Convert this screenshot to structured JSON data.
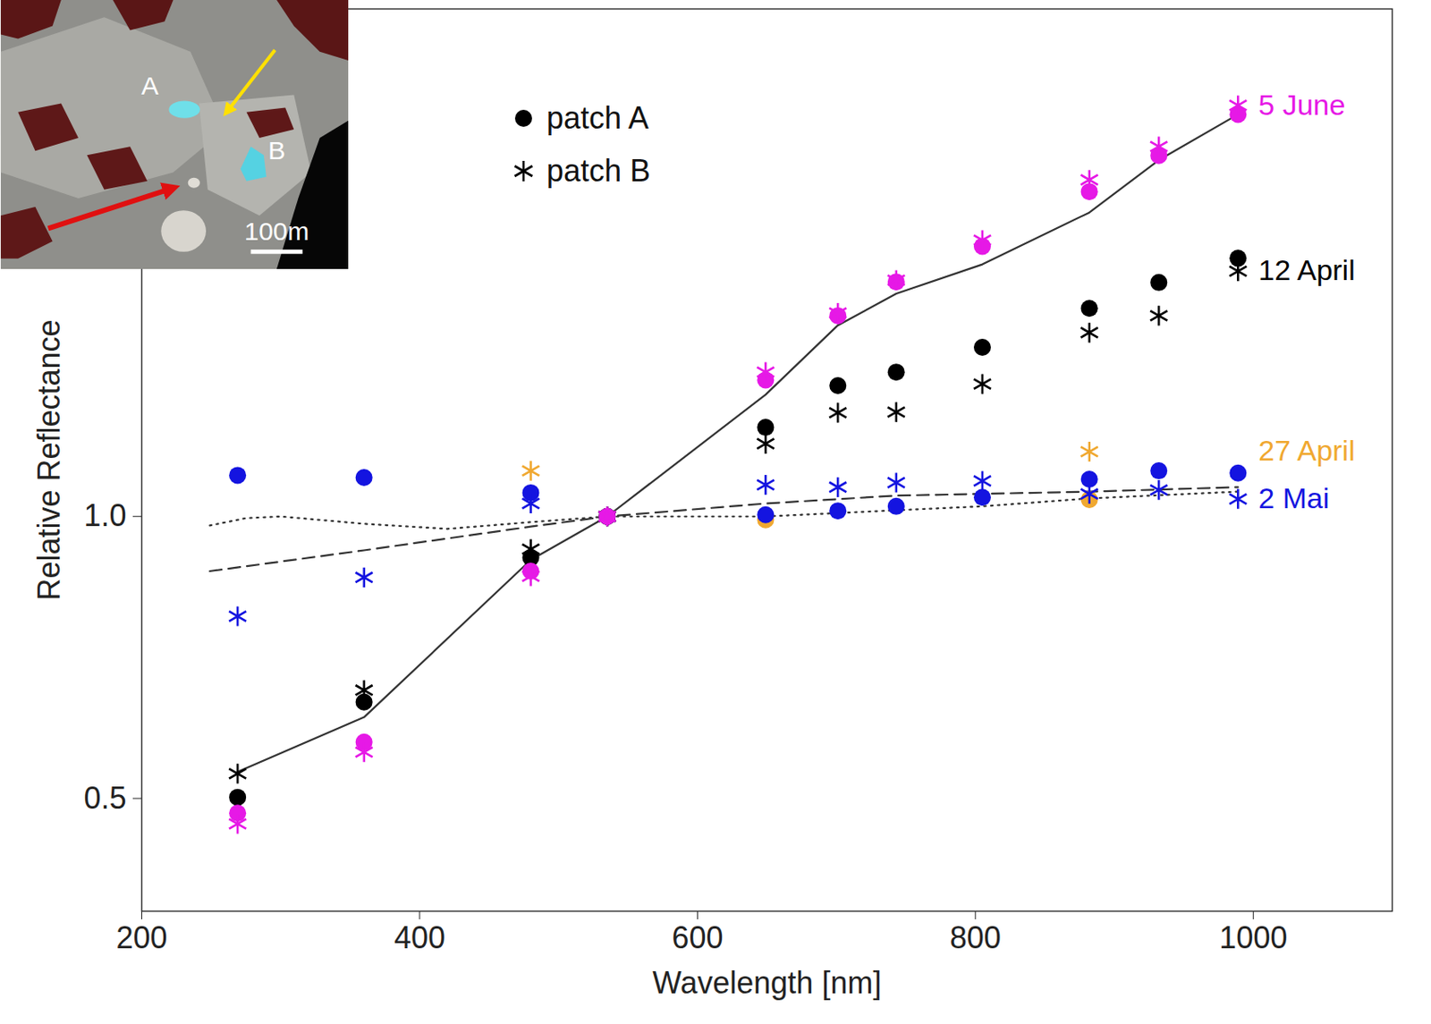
{
  "chart_data": {
    "type": "scatter",
    "x_label": "Wavelength [nm]",
    "y_label": "Relative Reflectance",
    "xlim": [
      200,
      1100
    ],
    "ylim": [
      0.3,
      1.9
    ],
    "xticks": [
      200,
      400,
      600,
      800,
      1000
    ],
    "yticks": [
      0.5,
      {
        "value": 1,
        "label": "1.0"
      }
    ],
    "grid": false,
    "legend": "top",
    "annotations": [
      "A",
      "B",
      "100m"
    ],
    "x": [
      269,
      360,
      480,
      535,
      649,
      701,
      743,
      805,
      882,
      932,
      989
    ],
    "series": [
      {
        "type": "line",
        "line_style": "solid",
        "color": "#333333",
        "values": [
          0.547,
          0.644,
          0.923,
          1.0,
          1.216,
          1.339,
          1.395,
          1.447,
          1.539,
          1.632,
          1.713
        ]
      },
      {
        "type": "line",
        "line_style": "dashed",
        "color": "#333333",
        "x": [
          249,
          360,
          480,
          535,
          649,
          743,
          882,
          989
        ],
        "values": [
          0.903,
          0.94,
          0.982,
          1.0,
          1.023,
          1.037,
          1.044,
          1.052
        ]
      },
      {
        "type": "line",
        "line_style": "dotted",
        "color": "#333333",
        "x": [
          249,
          275,
          300,
          360,
          420,
          480,
          535,
          649,
          743,
          805,
          882,
          989
        ],
        "values": [
          0.984,
          0.997,
          1.0,
          0.987,
          0.978,
          0.99,
          1.0,
          1.0,
          1.011,
          1.018,
          1.032,
          1.044
        ]
      },
      {
        "name": "patch A",
        "group": "27 April",
        "color": "#f0a830",
        "marker": "circle",
        "values": [
          null,
          null,
          null,
          1.0,
          0.994,
          null,
          null,
          null,
          1.03,
          null,
          null
        ]
      },
      {
        "name": "patch B",
        "group": "27 April",
        "color": "#f0a830",
        "marker": "asterisk",
        "values": [
          null,
          null,
          1.081,
          1.0,
          null,
          null,
          null,
          null,
          1.115,
          null,
          null
        ]
      },
      {
        "name": "patch A",
        "group": "2 Mai",
        "color": "#1414e0",
        "marker": "circle",
        "values": [
          1.073,
          1.069,
          1.042,
          1.0,
          1.003,
          1.01,
          1.018,
          1.034,
          1.066,
          1.081,
          1.077
        ]
      },
      {
        "name": "patch B",
        "group": "2 Mai",
        "color": "#1414e0",
        "marker": "asterisk",
        "values": [
          0.823,
          0.892,
          1.023,
          1.0,
          1.056,
          1.052,
          1.06,
          1.063,
          1.04,
          1.047,
          1.031
        ]
      },
      {
        "name": "patch A",
        "group": "12 April",
        "color": "#000000",
        "marker": "circle",
        "values": [
          0.502,
          0.671,
          0.927,
          1.0,
          1.158,
          1.232,
          1.256,
          1.3,
          1.369,
          1.415,
          1.458
        ]
      },
      {
        "name": "patch B",
        "group": "12 April",
        "color": "#000000",
        "marker": "asterisk",
        "values": [
          0.544,
          0.692,
          0.942,
          1.0,
          1.129,
          1.184,
          1.185,
          1.235,
          1.326,
          1.356,
          1.435
        ]
      },
      {
        "name": "patch A",
        "group": "5 June",
        "color": "#e619e6",
        "marker": "circle",
        "values": [
          0.474,
          0.6,
          0.903,
          1.0,
          1.242,
          1.356,
          1.416,
          1.479,
          1.576,
          1.64,
          1.713
        ]
      },
      {
        "name": "patch B",
        "group": "5 June",
        "color": "#e619e6",
        "marker": "asterisk",
        "values": [
          0.455,
          0.582,
          0.894,
          1.0,
          1.256,
          1.361,
          1.419,
          1.49,
          1.597,
          1.656,
          1.729
        ]
      }
    ]
  }
}
